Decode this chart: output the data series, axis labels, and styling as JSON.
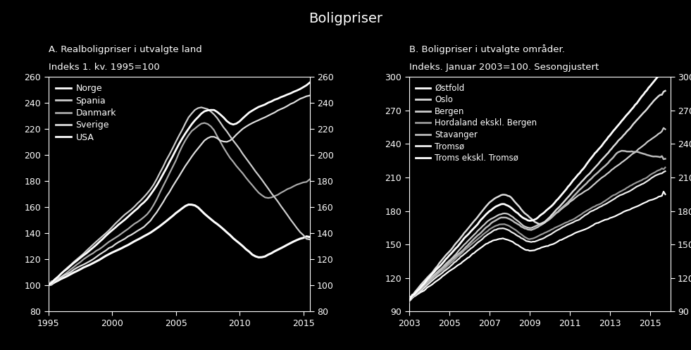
{
  "title": "Boligpriser",
  "background_color": "#000000",
  "text_color": "#ffffff",
  "panel_a": {
    "subtitle_line1": "A. Realboligpriser i utvalgte land",
    "subtitle_line2": "Indeks 1. kv. 1995=100",
    "ylim": [
      80,
      260
    ],
    "yticks": [
      80,
      100,
      120,
      140,
      160,
      180,
      200,
      220,
      240,
      260
    ],
    "xlim_start": 1995.0,
    "xlim_end": 2015.5,
    "xticks": [
      1995,
      2000,
      2005,
      2010,
      2015
    ]
  },
  "panel_b": {
    "subtitle_line1": "B. Boligpriser i utvalgte områder.",
    "subtitle_line2": "Indeks. Januar 2003=100. Sesongjustert",
    "ylim": [
      90,
      300
    ],
    "yticks": [
      90,
      120,
      150,
      180,
      210,
      240,
      270,
      300
    ],
    "xlim_start": 2003.0,
    "xlim_end": 2016.0,
    "xticks": [
      2003,
      2005,
      2007,
      2009,
      2011,
      2013,
      2015
    ]
  },
  "legend_a": [
    "Norge",
    "Spania",
    "Danmark",
    "Sverige",
    "USA"
  ],
  "legend_b": [
    "Østfold",
    "Oslo",
    "Bergen",
    "Hordaland ekskl. Bergen",
    "Stavanger",
    "Tromsø",
    "Troms ekskl. Tromsø"
  ]
}
